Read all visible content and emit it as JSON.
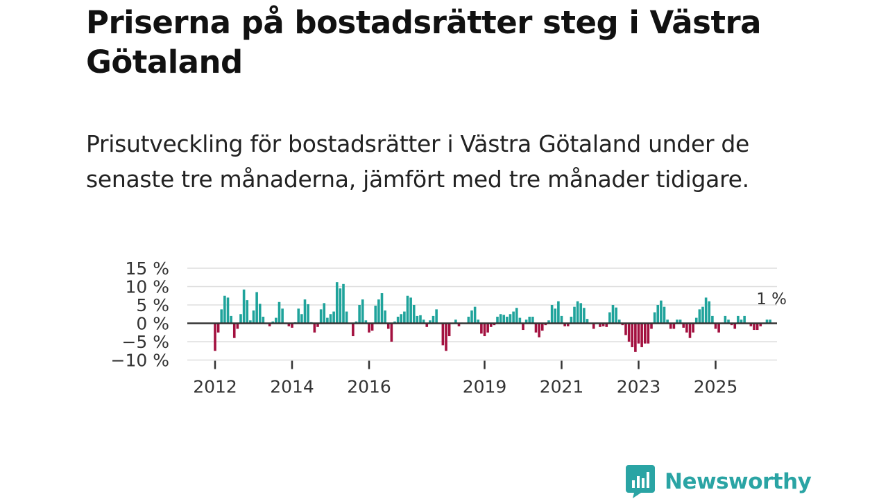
{
  "title": "Priserna på bostadsrätter steg i Västra Götaland",
  "subtitle": "Prisutveckling för bostadsrätter i Västra Götaland under de senaste tre månaderna, jämfört med tre månader tidigare.",
  "brand": {
    "name": "Newsworthy",
    "icon": "newsworthy-logo-icon",
    "color": "#2aa4a4"
  },
  "colors": {
    "positive": "#1fa39b",
    "negative": "#a3103f",
    "zero_line": "#333333",
    "grid": "#dddddd"
  },
  "chart_data": {
    "type": "bar",
    "title": "Priserna på bostadsrätter steg i Västra Götaland",
    "xlabel": "",
    "ylabel": "",
    "x_start": "2012-01",
    "frequency": "monthly",
    "ylim": [
      -10,
      15
    ],
    "yticks": [
      15,
      10,
      5,
      0,
      -5,
      -10
    ],
    "ytick_labels": [
      "15 %",
      "10 %",
      "5 %",
      "0 %",
      "−5 %",
      "−10 %"
    ],
    "xticks": [
      "2012",
      "2014",
      "2016",
      "2019",
      "2021",
      "2023",
      "2025"
    ],
    "grid": true,
    "last_value_label": "1 %",
    "values": [
      -7.5,
      -2.5,
      3.8,
      7.5,
      7.0,
      2.0,
      -4.0,
      -1.5,
      2.5,
      9.2,
      6.3,
      0.8,
      3.5,
      8.5,
      5.3,
      1.8,
      0.0,
      -0.8,
      0.5,
      1.5,
      5.8,
      4.0,
      0.2,
      -0.8,
      -1.2,
      0.3,
      4.0,
      2.5,
      6.5,
      5.2,
      0.3,
      -2.5,
      -1.0,
      3.8,
      5.5,
      1.5,
      2.5,
      3.2,
      11.2,
      9.5,
      10.7,
      3.2,
      0.0,
      -3.5,
      0.5,
      5.0,
      6.5,
      0.8,
      -2.5,
      -2.0,
      4.8,
      6.5,
      8.2,
      3.5,
      -1.5,
      -5.0,
      0.5,
      1.8,
      2.5,
      3.2,
      7.5,
      7.0,
      5.0,
      2.0,
      2.2,
      1.0,
      -1.0,
      0.8,
      2.0,
      3.8,
      0.0,
      -6.0,
      -7.5,
      -3.5,
      0.0,
      1.0,
      -0.8,
      0.2,
      0.0,
      1.8,
      3.5,
      4.5,
      1.0,
      -2.8,
      -3.5,
      -2.5,
      -1.0,
      -0.5,
      1.8,
      2.5,
      2.3,
      1.8,
      2.5,
      3.2,
      4.2,
      1.5,
      -1.8,
      1.0,
      1.8,
      1.8,
      -2.5,
      -3.8,
      -2.0,
      -0.5,
      0.8,
      5.0,
      4.0,
      6.0,
      2.0,
      -0.8,
      -0.8,
      1.8,
      4.5,
      6.0,
      5.5,
      4.2,
      1.2,
      0.0,
      -1.5,
      0.2,
      -1.0,
      -0.8,
      -1.0,
      3.0,
      5.0,
      4.3,
      1.0,
      -0.5,
      -3.2,
      -5.0,
      -6.5,
      -7.8,
      -5.5,
      -6.5,
      -5.5,
      -5.5,
      -1.5,
      3.0,
      5.0,
      6.2,
      4.5,
      1.0,
      -1.5,
      -1.5,
      1.0,
      1.0,
      -1.2,
      -2.5,
      -4.0,
      -2.5,
      1.5,
      3.8,
      4.5,
      7.0,
      6.0,
      2.0,
      -1.5,
      -2.5,
      0.2,
      2.0,
      1.0,
      -0.5,
      -1.5,
      2.0,
      1.0,
      2.0,
      0.0,
      -0.8,
      -1.8,
      -1.8,
      -0.8,
      0.2,
      1.0,
      1.0
    ]
  }
}
